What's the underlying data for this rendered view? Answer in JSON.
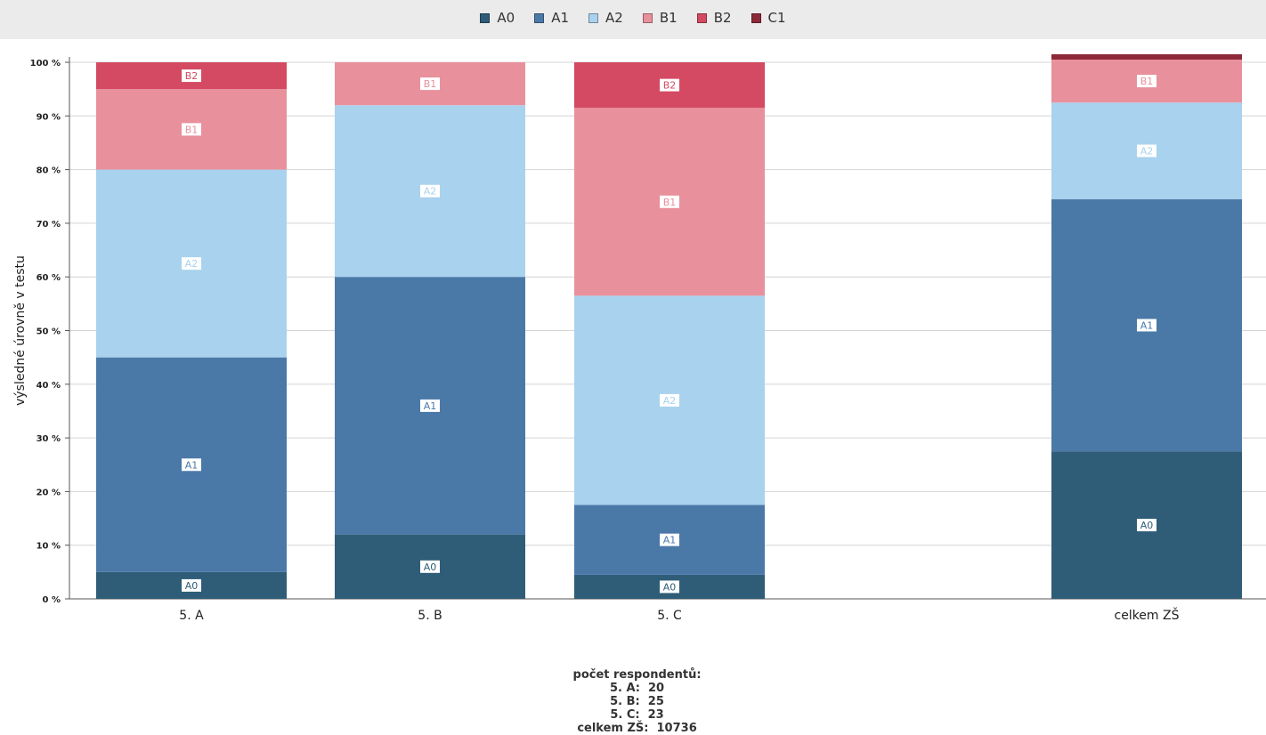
{
  "chart_data": {
    "type": "bar",
    "stacked": true,
    "title": "",
    "xlabel": "",
    "ylabel": "výsledné úrovně v testu",
    "ylim": [
      0,
      100
    ],
    "y_ticks": [
      "0 %",
      "10 %",
      "20 %",
      "30 %",
      "40 %",
      "50 %",
      "60 %",
      "70 %",
      "80 %",
      "90 %",
      "100 %"
    ],
    "grid": true,
    "legend_position": "top",
    "categories": [
      "5. A",
      "5. B",
      "5. C",
      "celkem ZŠ"
    ],
    "series": [
      {
        "name": "A0",
        "color": "#2f5d78",
        "values": [
          5,
          12,
          4.5,
          27.5
        ]
      },
      {
        "name": "A1",
        "color": "#4a79a8",
        "values": [
          40,
          48,
          13,
          47
        ]
      },
      {
        "name": "A2",
        "color": "#a9d2ee",
        "values": [
          35,
          32,
          39,
          18
        ]
      },
      {
        "name": "B1",
        "color": "#e8909c",
        "values": [
          15,
          8,
          35,
          8
        ]
      },
      {
        "name": "B2",
        "color": "#d44a62",
        "values": [
          5,
          0,
          8.5,
          0
        ]
      },
      {
        "name": "C1",
        "color": "#8c2a3a",
        "values": [
          0,
          0,
          0,
          1
        ]
      }
    ],
    "segment_labels": [
      [
        "A0",
        "A1",
        "A2",
        "B1",
        "B2"
      ],
      [
        "A0",
        "A1",
        "A2",
        "B1"
      ],
      [
        "A0",
        "A1",
        "A2",
        "B1",
        "B2"
      ],
      [
        "A0",
        "A1",
        "A2",
        "B1"
      ]
    ]
  },
  "footer": {
    "respondents_label": "počet respondentů:",
    "counts": [
      "5. A:  20",
      "5. B:  25",
      "5. C:  23",
      "celkem ZŠ:  10736"
    ]
  }
}
